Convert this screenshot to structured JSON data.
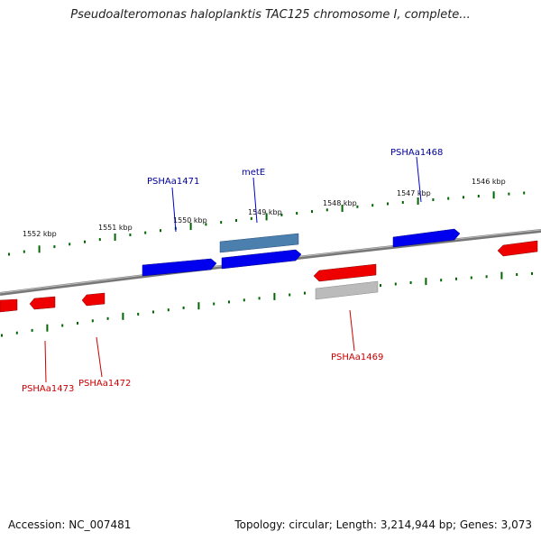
{
  "title": "Pseudoalteromonas haloplanktis TAC125 chromosome I, complete...",
  "footer": {
    "accession": "Accession: NC_007481",
    "summary": "Topology: circular; Length: 3,214,944 bp; Genes: 3,073"
  },
  "colors": {
    "forward": "#0000ee",
    "forward_highlight": "#4a7fae",
    "reverse": "#ee0000",
    "reverse_other": "#bbbbbb",
    "tick": "#006600",
    "backbone": "#888888",
    "forward_label": "#000099",
    "reverse_label": "#cc0000"
  },
  "kbp_labels": [
    {
      "label": "1552 kbp"
    },
    {
      "label": "1551 kbp"
    },
    {
      "label": "1550 kbp"
    },
    {
      "label": "1549 kbp"
    },
    {
      "label": "1548 kbp"
    },
    {
      "label": "1547 kbp"
    },
    {
      "label": "1546 kbp"
    }
  ],
  "gene_labels": {
    "forward": [
      "PSHAa1471",
      "metE",
      "PSHAa1468"
    ],
    "reverse": [
      "PSHAa1473",
      "PSHAa1472",
      "PSHAa1469"
    ]
  }
}
